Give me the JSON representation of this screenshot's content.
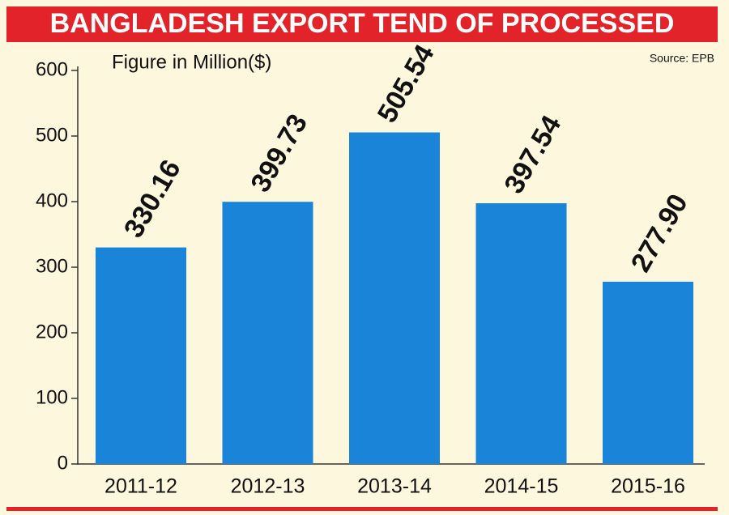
{
  "chart_data": {
    "type": "bar",
    "title": "BANGLADESH EXPORT TEND OF PROCESSED",
    "subtitle": "Figure in Million($)",
    "source": "Source: EPB",
    "categories": [
      "2011-12",
      "2012-13",
      "2013-14",
      "2014-15",
      "2015-16"
    ],
    "values": [
      330.16,
      399.73,
      505.54,
      397.54,
      277.9
    ],
    "value_labels": [
      "330.16",
      "399.73",
      "505.54",
      "397.54",
      "277.90"
    ],
    "color": "#1a84d8",
    "ylim": [
      0,
      600
    ],
    "yticks": [
      0,
      100,
      200,
      300,
      400,
      500,
      600
    ]
  }
}
